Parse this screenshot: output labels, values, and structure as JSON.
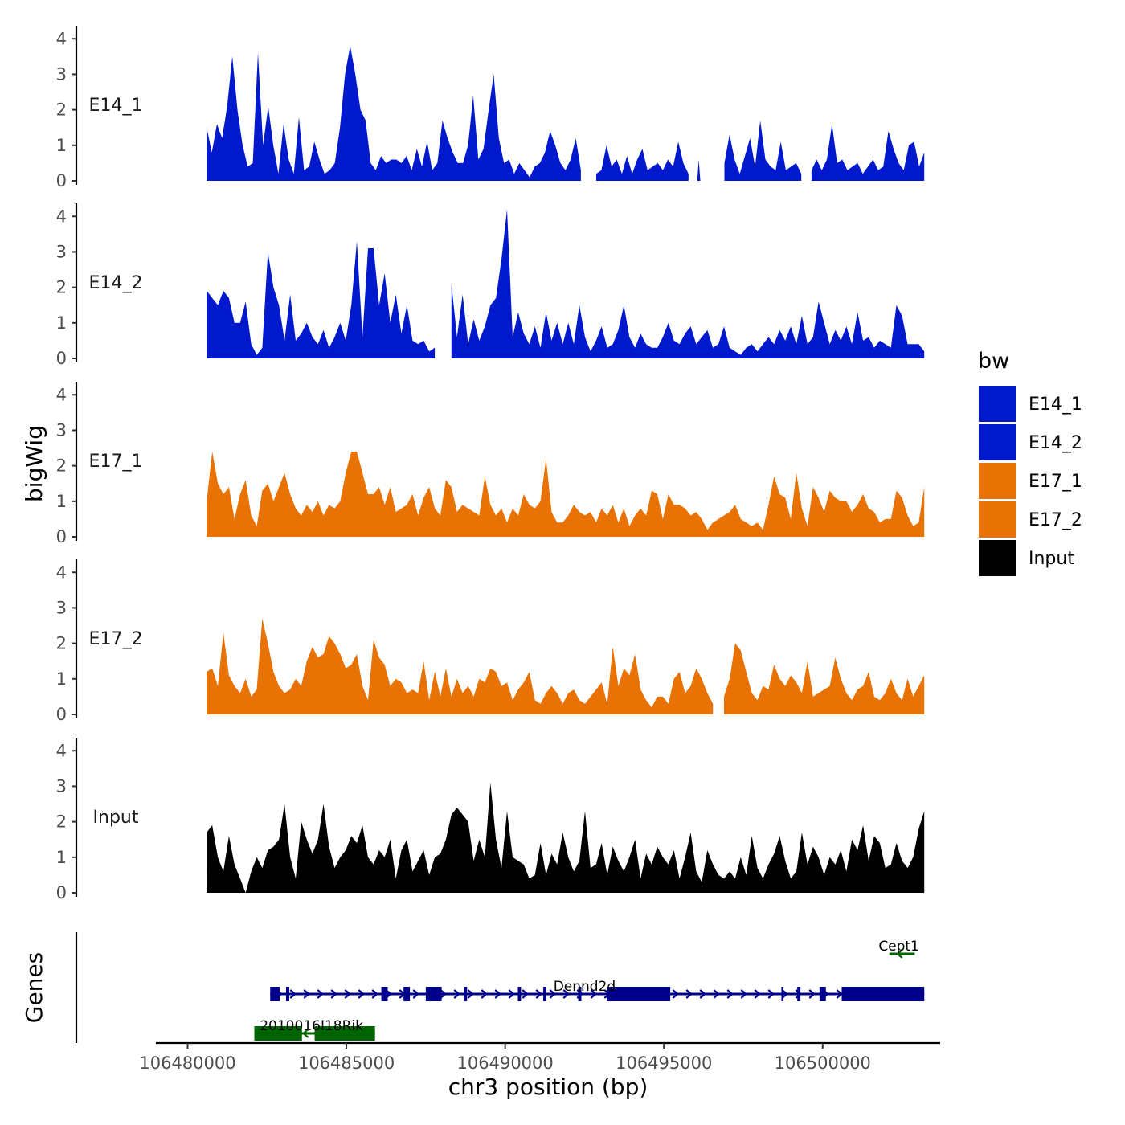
{
  "chart_data": {
    "type": "area",
    "ylabel": "bigWig",
    "xlabel": "chr3 position (bp)",
    "x_range": [
      106479000,
      106503700
    ],
    "x_ticks": [
      106480000,
      106485000,
      106490000,
      106495000,
      106500000
    ],
    "x_tick_labels": [
      "106480000",
      "106485000",
      "106490000",
      "106495000",
      "106500000"
    ],
    "y_range": [
      0,
      4.3
    ],
    "y_ticks": [
      0,
      1,
      2,
      3,
      4
    ],
    "y_tick_labels": [
      "0",
      "1",
      "2",
      "3",
      "4"
    ],
    "track_start": 106480600,
    "track_end": 106503200,
    "legend": {
      "title": "bw",
      "items": [
        {
          "label": "E14_1",
          "color": "#0019CC"
        },
        {
          "label": "E14_2",
          "color": "#0019CC"
        },
        {
          "label": "E17_1",
          "color": "#E87203"
        },
        {
          "label": "E17_2",
          "color": "#E87203"
        },
        {
          "label": "Input",
          "color": "#000000"
        }
      ]
    },
    "series": [
      {
        "name": "E14_1",
        "color": "#0019CC",
        "values": [
          1.5,
          0.8,
          1.6,
          1.2,
          2.1,
          3.5,
          2.0,
          1.0,
          0.4,
          0.5,
          3.6,
          1.0,
          2.1,
          1.0,
          0.2,
          1.6,
          0.6,
          0.2,
          1.8,
          0.3,
          0.4,
          1.1,
          0.6,
          0.2,
          0.3,
          0.5,
          1.5,
          3.0,
          3.8,
          3.0,
          2.0,
          1.7,
          0.5,
          0.3,
          0.7,
          0.5,
          0.6,
          0.6,
          0.5,
          0.7,
          0.3,
          0.9,
          0.4,
          1.1,
          0.3,
          0.5,
          1.7,
          1.2,
          0.8,
          0.5,
          0.5,
          1.0,
          2.4,
          0.6,
          0.9,
          2.0,
          3.0,
          1.2,
          0.5,
          0.6,
          0.2,
          0.5,
          0.3,
          0.1,
          0.4,
          0.5,
          0.8,
          1.4,
          1.0,
          0.5,
          0.3,
          0.6,
          1.2,
          0.3,
          null,
          null,
          0.2,
          0.3,
          1.0,
          0.4,
          0.6,
          0.2,
          0.7,
          0.2,
          0.6,
          0.9,
          0.3,
          0.4,
          0.5,
          0.3,
          0.6,
          0.4,
          1.1,
          0.5,
          0.2,
          null,
          0.6,
          null,
          null,
          null,
          null,
          0.5,
          1.3,
          0.6,
          0.2,
          0.7,
          1.2,
          0.4,
          1.7,
          0.6,
          0.4,
          0.3,
          1.1,
          0.3,
          0.4,
          0.5,
          0.2,
          null,
          0.3,
          0.6,
          0.3,
          0.6,
          1.6,
          0.5,
          0.6,
          0.3,
          0.4,
          0.5,
          0.2,
          0.4,
          0.6,
          0.3,
          0.4,
          1.4,
          0.9,
          0.5,
          0.3,
          1.0,
          1.1,
          0.4,
          0.8
        ]
      },
      {
        "name": "E14_2",
        "color": "#0019CC",
        "values": [
          1.9,
          1.7,
          1.5,
          1.9,
          1.7,
          1.0,
          1.0,
          1.6,
          0.4,
          0.1,
          0.3,
          3.0,
          2.0,
          1.5,
          0.5,
          1.8,
          0.5,
          0.7,
          1.0,
          0.6,
          0.4,
          0.8,
          0.3,
          0.6,
          1.0,
          0.5,
          1.5,
          3.3,
          0.6,
          3.1,
          3.1,
          1.5,
          2.4,
          1.0,
          1.8,
          0.7,
          1.5,
          0.5,
          0.4,
          0.5,
          0.2,
          0.3,
          null,
          null,
          2.1,
          0.6,
          1.8,
          0.4,
          1.1,
          0.5,
          0.9,
          1.5,
          1.7,
          2.8,
          4.2,
          0.6,
          1.3,
          0.7,
          0.4,
          0.9,
          0.3,
          1.3,
          0.5,
          1.0,
          0.4,
          1.0,
          0.4,
          1.5,
          0.6,
          0.2,
          0.5,
          0.9,
          0.3,
          0.4,
          0.8,
          1.5,
          0.6,
          0.3,
          0.7,
          0.4,
          0.3,
          0.3,
          0.6,
          1.0,
          0.5,
          0.4,
          0.7,
          0.9,
          0.4,
          0.6,
          0.8,
          0.3,
          0.4,
          0.9,
          0.3,
          0.2,
          0.1,
          0.3,
          0.4,
          0.2,
          0.4,
          0.6,
          0.4,
          0.8,
          0.5,
          0.9,
          0.4,
          1.2,
          0.4,
          0.6,
          1.6,
          1.0,
          0.4,
          0.8,
          0.5,
          0.9,
          0.4,
          1.3,
          0.5,
          0.6,
          0.3,
          0.5,
          0.4,
          0.3,
          1.5,
          1.2,
          0.4,
          0.4,
          0.4,
          0.2
        ]
      },
      {
        "name": "E17_1",
        "color": "#E87203",
        "values": [
          1.0,
          2.4,
          1.5,
          1.2,
          1.4,
          0.5,
          1.2,
          1.6,
          0.6,
          0.3,
          1.3,
          1.5,
          1.0,
          1.4,
          1.8,
          1.2,
          0.8,
          0.6,
          0.9,
          0.7,
          1.0,
          0.6,
          0.9,
          0.8,
          1.0,
          1.8,
          2.4,
          2.4,
          1.8,
          1.2,
          1.2,
          1.4,
          0.9,
          1.4,
          0.7,
          0.8,
          0.9,
          1.2,
          0.6,
          1.1,
          1.4,
          0.8,
          0.6,
          1.6,
          1.4,
          0.7,
          0.9,
          0.8,
          0.7,
          0.6,
          1.7,
          0.9,
          0.6,
          0.8,
          0.4,
          0.8,
          0.6,
          1.2,
          0.9,
          0.8,
          1.0,
          2.2,
          0.7,
          0.4,
          0.4,
          0.6,
          0.9,
          0.7,
          0.6,
          0.7,
          0.4,
          0.8,
          0.6,
          0.9,
          0.4,
          0.8,
          0.3,
          0.6,
          0.8,
          0.6,
          1.3,
          1.2,
          0.5,
          1.2,
          0.9,
          0.9,
          0.8,
          0.6,
          0.7,
          0.5,
          0.2,
          0.4,
          0.5,
          0.6,
          0.7,
          0.9,
          0.5,
          0.4,
          0.3,
          0.4,
          0.2,
          0.9,
          1.7,
          1.2,
          1.1,
          0.5,
          1.8,
          0.8,
          0.3,
          1.4,
          1.1,
          0.7,
          1.3,
          1.1,
          1.0,
          1.0,
          0.7,
          0.9,
          1.2,
          0.8,
          0.7,
          0.4,
          0.5,
          0.5,
          1.3,
          1.1,
          0.6,
          0.3,
          0.4,
          1.4
        ]
      },
      {
        "name": "E17_2",
        "color": "#E87203",
        "values": [
          1.2,
          1.3,
          0.8,
          2.3,
          1.1,
          0.8,
          0.6,
          1.0,
          0.5,
          0.7,
          2.7,
          2.0,
          1.2,
          0.8,
          0.6,
          0.7,
          1.0,
          0.8,
          1.5,
          1.9,
          1.6,
          1.7,
          2.2,
          2.0,
          1.7,
          1.3,
          1.4,
          1.7,
          0.8,
          0.4,
          2.1,
          1.6,
          1.4,
          0.8,
          1.0,
          0.9,
          0.6,
          0.7,
          0.6,
          1.5,
          0.4,
          1.2,
          0.5,
          1.3,
          0.5,
          1.0,
          0.6,
          0.8,
          0.5,
          1.0,
          0.9,
          1.3,
          1.2,
          0.8,
          0.9,
          0.4,
          0.7,
          0.9,
          1.2,
          0.4,
          0.3,
          0.6,
          0.8,
          0.6,
          0.3,
          0.6,
          0.7,
          0.4,
          0.3,
          0.5,
          0.7,
          0.9,
          0.3,
          1.9,
          0.8,
          1.3,
          1.1,
          1.7,
          0.7,
          0.4,
          0.2,
          0.5,
          0.5,
          0.3,
          1.0,
          1.2,
          0.6,
          0.8,
          1.3,
          1.0,
          0.6,
          0.3,
          null,
          0.5,
          1.0,
          2.0,
          1.8,
          1.2,
          0.6,
          0.4,
          0.8,
          0.7,
          1.4,
          1.0,
          0.8,
          1.1,
          0.9,
          0.6,
          1.5,
          0.5,
          0.6,
          0.7,
          0.8,
          1.6,
          1.0,
          0.6,
          0.4,
          0.7,
          0.8,
          1.2,
          0.5,
          0.4,
          0.6,
          1.0,
          0.6,
          0.4,
          1.0,
          0.5,
          0.8,
          1.1
        ]
      },
      {
        "name": "Input",
        "color": "#000000",
        "values": [
          1.7,
          1.9,
          1.0,
          0.6,
          1.6,
          0.8,
          0.4,
          0.0,
          0.6,
          1.0,
          0.7,
          1.2,
          1.3,
          1.5,
          2.5,
          1.0,
          0.4,
          2.0,
          1.5,
          1.1,
          1.5,
          2.5,
          1.3,
          0.7,
          1.0,
          1.2,
          1.6,
          1.4,
          1.9,
          1.0,
          0.8,
          1.2,
          1.0,
          1.5,
          0.4,
          1.2,
          1.5,
          0.6,
          0.9,
          1.2,
          0.5,
          1.0,
          1.1,
          1.5,
          2.2,
          2.4,
          2.2,
          2.0,
          0.9,
          1.5,
          1.0,
          3.1,
          1.5,
          0.7,
          2.3,
          1.0,
          0.9,
          0.8,
          0.4,
          0.5,
          1.4,
          0.5,
          1.1,
          0.8,
          1.7,
          1.0,
          0.6,
          0.9,
          2.3,
          0.7,
          0.8,
          1.4,
          0.5,
          1.3,
          0.9,
          0.6,
          1.0,
          1.5,
          0.4,
          1.1,
          0.8,
          1.3,
          1.0,
          0.8,
          1.2,
          0.4,
          1.0,
          1.7,
          0.6,
          0.3,
          1.2,
          0.8,
          0.5,
          0.4,
          0.6,
          0.4,
          1.0,
          0.5,
          1.6,
          0.7,
          0.4,
          0.8,
          1.1,
          1.6,
          0.9,
          0.4,
          0.6,
          1.7,
          0.8,
          1.3,
          1.0,
          0.5,
          1.0,
          0.8,
          1.2,
          0.6,
          1.5,
          1.2,
          1.9,
          0.9,
          1.6,
          1.4,
          0.7,
          0.8,
          1.4,
          0.9,
          0.7,
          1.0,
          1.8,
          2.3
        ]
      }
    ],
    "genes_panel_label": "Genes",
    "genes": [
      {
        "name": "Cept1",
        "color": "#006400",
        "start": 106502100,
        "end": 106502900,
        "strand": "-",
        "row": 0,
        "blocks": [],
        "label_pos": 106502400
      },
      {
        "name": "Dennd2d",
        "color": "#00008B",
        "start": 106482600,
        "end": 106503200,
        "strand": "+",
        "row": 1,
        "blocks": [
          [
            106482600,
            106482900
          ],
          [
            106483100,
            106483200
          ],
          [
            106486100,
            106486300
          ],
          [
            106486800,
            106487000
          ],
          [
            106487500,
            106488000
          ],
          [
            106488700,
            106488800
          ],
          [
            106490400,
            106490500
          ],
          [
            106491200,
            106491300
          ],
          [
            106492300,
            106492400
          ],
          [
            106493200,
            106495200
          ],
          [
            106498700,
            106498750
          ],
          [
            106499200,
            106499300
          ],
          [
            106499900,
            106500100
          ],
          [
            106500600,
            106503200
          ]
        ],
        "label_pos": 106492500
      },
      {
        "name": "2010016I18Rik",
        "color": "#006400",
        "start": 106482100,
        "end": 106485900,
        "strand": "-",
        "row": 2,
        "blocks": [
          [
            106482100,
            106483600
          ],
          [
            106484000,
            106485900
          ]
        ],
        "label_pos": 106483900
      }
    ]
  }
}
